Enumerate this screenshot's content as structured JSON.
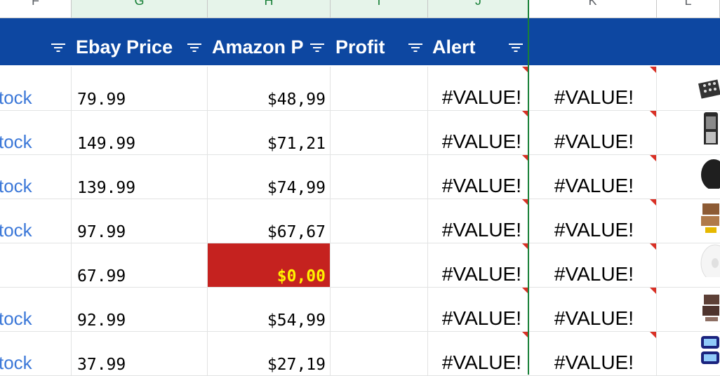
{
  "column_headers": [
    "F",
    "G",
    "H",
    "I",
    "J",
    "K",
    "L"
  ],
  "header_row": {
    "ebay_price": "Ebay Price",
    "amazon_price": "Amazon P",
    "profit": "Profit",
    "alert": "Alert"
  },
  "rows": [
    {
      "status": "tock",
      "ebay": "79.99",
      "amazon": "$48,99",
      "profit": "#VALUE!",
      "alert": "#VALUE!"
    },
    {
      "status": "tock",
      "ebay": "149.99",
      "amazon": "$71,21",
      "profit": "#VALUE!",
      "alert": "#VALUE!"
    },
    {
      "status": "tock",
      "ebay": "139.99",
      "amazon": "$74,99",
      "profit": "#VALUE!",
      "alert": "#VALUE!"
    },
    {
      "status": "tock",
      "ebay": "97.99",
      "amazon": "$67,67",
      "profit": "#VALUE!",
      "alert": "#VALUE!"
    },
    {
      "status": "",
      "ebay": "67.99",
      "amazon": "$0,00",
      "profit": "#VALUE!",
      "alert": "#VALUE!",
      "highlight": true
    },
    {
      "status": "tock",
      "ebay": "92.99",
      "amazon": "$54,99",
      "profit": "#VALUE!",
      "alert": "#VALUE!"
    },
    {
      "status": "tock",
      "ebay": "37.99",
      "amazon": "$27,19",
      "profit": "#VALUE!",
      "alert": "#VALUE!"
    }
  ],
  "colors": {
    "header_band": "#0d47a1",
    "alert_fill": "#c5221f",
    "alert_text": "#fff200",
    "link_text": "#3c78d8",
    "selection": "#188038"
  },
  "icons": [
    "filter-icon",
    "product-thumbnail",
    "comment-indicator-icon"
  ]
}
